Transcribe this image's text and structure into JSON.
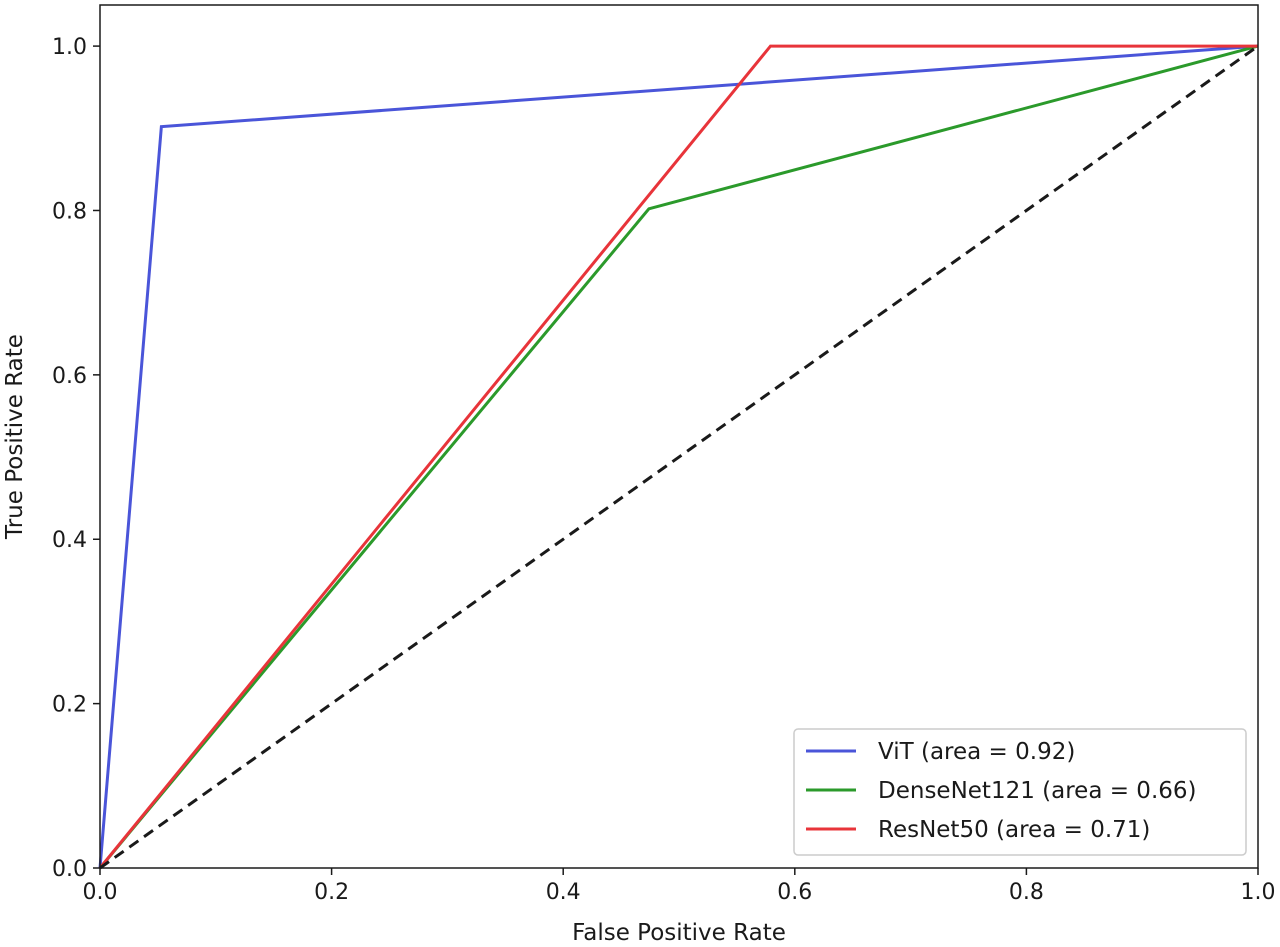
{
  "chart_data": {
    "type": "line",
    "title": "",
    "xlabel": "False Positive Rate",
    "ylabel": "True Positive Rate",
    "xlim": [
      0.0,
      1.0
    ],
    "ylim": [
      0.0,
      1.05
    ],
    "x_ticks": [
      "0.0",
      "0.2",
      "0.4",
      "0.6",
      "0.8",
      "1.0"
    ],
    "y_ticks": [
      "0.0",
      "0.2",
      "0.4",
      "0.6",
      "0.8",
      "1.0"
    ],
    "grid": false,
    "legend_position": "lower-right",
    "series": [
      {
        "name": "ViT (area = 0.92)",
        "color": "#4a55d9",
        "style": "solid",
        "x": [
          0.0,
          0.053,
          1.0
        ],
        "y": [
          0.0,
          0.902,
          1.0
        ]
      },
      {
        "name": "DenseNet121 (area = 0.66)",
        "color": "#2b9a2b",
        "style": "solid",
        "x": [
          0.0,
          0.474,
          1.0
        ],
        "y": [
          0.0,
          0.802,
          1.0
        ]
      },
      {
        "name": "ResNet50 (area = 0.71)",
        "color": "#e8343a",
        "style": "solid",
        "x": [
          0.0,
          0.579,
          1.0
        ],
        "y": [
          0.0,
          1.0,
          1.0
        ]
      },
      {
        "color": "#1a1a1a",
        "style": "dashed",
        "x": [
          0.0,
          1.0
        ],
        "y": [
          0.0,
          1.0
        ]
      }
    ]
  }
}
